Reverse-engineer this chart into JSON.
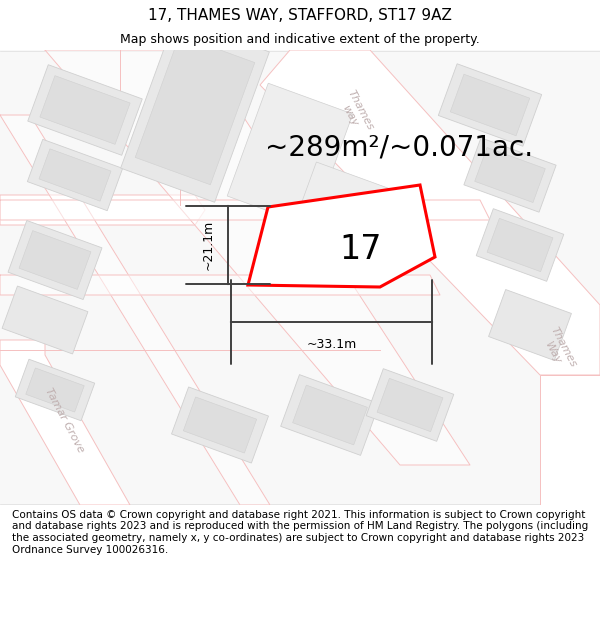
{
  "title": "17, THAMES WAY, STAFFORD, ST17 9AZ",
  "subtitle": "Map shows position and indicative extent of the property.",
  "area_text": "~289m²/~0.071ac.",
  "property_number": "17",
  "dim_width": "~33.1m",
  "dim_height": "~21.1m",
  "footer": "Contains OS data © Crown copyright and database right 2021. This information is subject to Crown copyright and database rights 2023 and is reproduced with the permission of HM Land Registry. The polygons (including the associated geometry, namely x, y co-ordinates) are subject to Crown copyright and database rights 2023 Ordnance Survey 100026316.",
  "bg_color": "#ffffff",
  "map_bg": "#f7f7f7",
  "block_color": "#e8e8e8",
  "block_edge": "#d0d0d0",
  "road_line_color": "#f5c0c0",
  "plot_outline_color": "#ff0000",
  "dim_line_color": "#404040",
  "street_label_color": "#c0b0b0",
  "title_fontsize": 11,
  "subtitle_fontsize": 9,
  "area_fontsize": 20,
  "number_fontsize": 24,
  "footer_fontsize": 7.5
}
